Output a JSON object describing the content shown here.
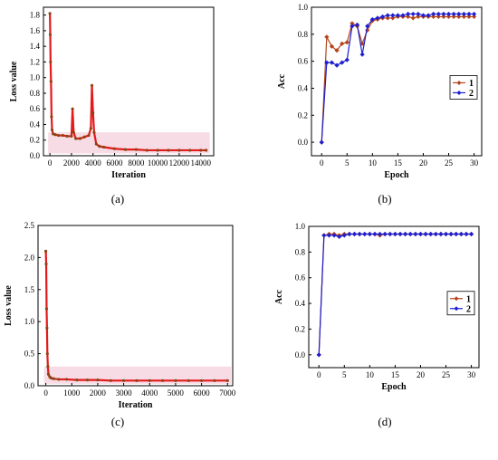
{
  "panels": [
    {
      "caption": "(a)"
    },
    {
      "caption": "(b)"
    },
    {
      "caption": "(c)"
    },
    {
      "caption": "(d)"
    }
  ],
  "colors": {
    "loss": "#e41a1c",
    "loss_dot": "#8b4513",
    "series1": "#b5451b",
    "series2": "#1f1fd0",
    "band": "#f2c4d4"
  },
  "chart_data": [
    {
      "type": "scatter",
      "title": "",
      "xlabel": "Iteration",
      "ylabel": "Loss value",
      "xlim": [
        -600,
        15200
      ],
      "ylim": [
        0.0,
        1.9
      ],
      "xticks": [
        0,
        2000,
        4000,
        6000,
        8000,
        10000,
        12000,
        14000
      ],
      "yticks": [
        0.0,
        0.2,
        0.4,
        0.6,
        0.8,
        1.0,
        1.2,
        1.4,
        1.6,
        1.8
      ],
      "series": [
        {
          "x": [
            0,
            30,
            60,
            100,
            150,
            200,
            300,
            500,
            800,
            1200,
            1600,
            2000,
            2100,
            2200,
            2400,
            2800,
            3200,
            3600,
            3800,
            3900,
            4000,
            4100,
            4300,
            4600,
            5000,
            6000,
            7000,
            8000,
            9000,
            10000,
            11000,
            12000,
            13000,
            14000,
            14500
          ],
          "y": [
            1.82,
            1.55,
            1.2,
            0.95,
            0.5,
            0.33,
            0.28,
            0.27,
            0.26,
            0.26,
            0.25,
            0.25,
            0.6,
            0.3,
            0.22,
            0.22,
            0.24,
            0.26,
            0.35,
            0.9,
            0.55,
            0.3,
            0.15,
            0.12,
            0.11,
            0.09,
            0.08,
            0.08,
            0.07,
            0.07,
            0.07,
            0.07,
            0.07,
            0.07,
            0.07
          ]
        }
      ]
    },
    {
      "type": "line",
      "title": "",
      "xlabel": "Epoch",
      "ylabel": "Acc",
      "xlim": [
        -2,
        31.5
      ],
      "ylim": [
        -0.1,
        1.0
      ],
      "xticks": [
        0,
        5,
        10,
        15,
        20,
        25,
        30
      ],
      "yticks": [
        0.0,
        0.2,
        0.4,
        0.6,
        0.8,
        1.0
      ],
      "legend": "center-right",
      "x": [
        0,
        1,
        2,
        3,
        4,
        5,
        6,
        7,
        8,
        9,
        10,
        11,
        12,
        13,
        14,
        15,
        16,
        17,
        18,
        19,
        20,
        21,
        22,
        23,
        24,
        25,
        26,
        27,
        28,
        29,
        30
      ],
      "series": [
        {
          "name": "1",
          "values": [
            0.0,
            0.78,
            0.71,
            0.68,
            0.73,
            0.74,
            0.88,
            0.86,
            0.73,
            0.83,
            0.9,
            0.91,
            0.92,
            0.92,
            0.92,
            0.93,
            0.93,
            0.93,
            0.92,
            0.93,
            0.93,
            0.93,
            0.93,
            0.93,
            0.93,
            0.93,
            0.93,
            0.93,
            0.93,
            0.93,
            0.93
          ]
        },
        {
          "name": "2",
          "values": [
            0.0,
            0.59,
            0.59,
            0.57,
            0.59,
            0.61,
            0.86,
            0.87,
            0.65,
            0.86,
            0.91,
            0.92,
            0.93,
            0.94,
            0.94,
            0.94,
            0.94,
            0.95,
            0.95,
            0.95,
            0.94,
            0.94,
            0.95,
            0.95,
            0.95,
            0.95,
            0.95,
            0.95,
            0.95,
            0.95,
            0.95
          ]
        }
      ]
    },
    {
      "type": "scatter",
      "title": "",
      "xlabel": "Iteration",
      "ylabel": "Loss value",
      "xlim": [
        -300,
        7200
      ],
      "ylim": [
        0.0,
        2.5
      ],
      "xticks": [
        0,
        1000,
        2000,
        3000,
        4000,
        5000,
        6000,
        7000
      ],
      "yticks": [
        0.0,
        0.5,
        1.0,
        1.5,
        2.0,
        2.5
      ],
      "series": [
        {
          "x": [
            0,
            15,
            30,
            45,
            60,
            80,
            100,
            150,
            200,
            300,
            500,
            800,
            1200,
            1600,
            2000,
            2500,
            3000,
            3500,
            4000,
            4500,
            5000,
            5500,
            6000,
            6500,
            7000
          ],
          "y": [
            2.1,
            1.9,
            1.2,
            0.9,
            0.5,
            0.3,
            0.18,
            0.14,
            0.12,
            0.11,
            0.1,
            0.1,
            0.09,
            0.09,
            0.09,
            0.08,
            0.08,
            0.08,
            0.08,
            0.08,
            0.08,
            0.08,
            0.08,
            0.08,
            0.08
          ]
        }
      ]
    },
    {
      "type": "line",
      "title": "",
      "xlabel": "Epoch",
      "ylabel": "Acc",
      "xlim": [
        -2,
        31.5
      ],
      "ylim": [
        -0.1,
        1.0
      ],
      "xticks": [
        0,
        5,
        10,
        15,
        20,
        25,
        30
      ],
      "yticks": [
        0.0,
        0.2,
        0.4,
        0.6,
        0.8,
        1.0
      ],
      "legend": "center-right",
      "x": [
        0,
        1,
        2,
        3,
        4,
        5,
        6,
        7,
        8,
        9,
        10,
        11,
        12,
        13,
        14,
        15,
        16,
        17,
        18,
        19,
        20,
        21,
        22,
        23,
        24,
        25,
        26,
        27,
        28,
        29,
        30
      ],
      "series": [
        {
          "name": "1",
          "values": [
            0.0,
            0.93,
            0.94,
            0.94,
            0.93,
            0.94,
            0.94,
            0.94,
            0.94,
            0.94,
            0.94,
            0.94,
            0.93,
            0.94,
            0.94,
            0.94,
            0.94,
            0.94,
            0.94,
            0.94,
            0.94,
            0.94,
            0.94,
            0.94,
            0.94,
            0.94,
            0.94,
            0.94,
            0.94,
            0.94,
            0.94
          ]
        },
        {
          "name": "2",
          "values": [
            0.0,
            0.93,
            0.93,
            0.93,
            0.92,
            0.93,
            0.94,
            0.94,
            0.94,
            0.94,
            0.94,
            0.94,
            0.94,
            0.94,
            0.94,
            0.94,
            0.94,
            0.94,
            0.94,
            0.94,
            0.94,
            0.94,
            0.94,
            0.94,
            0.94,
            0.94,
            0.94,
            0.94,
            0.94,
            0.94,
            0.94
          ]
        }
      ]
    }
  ]
}
